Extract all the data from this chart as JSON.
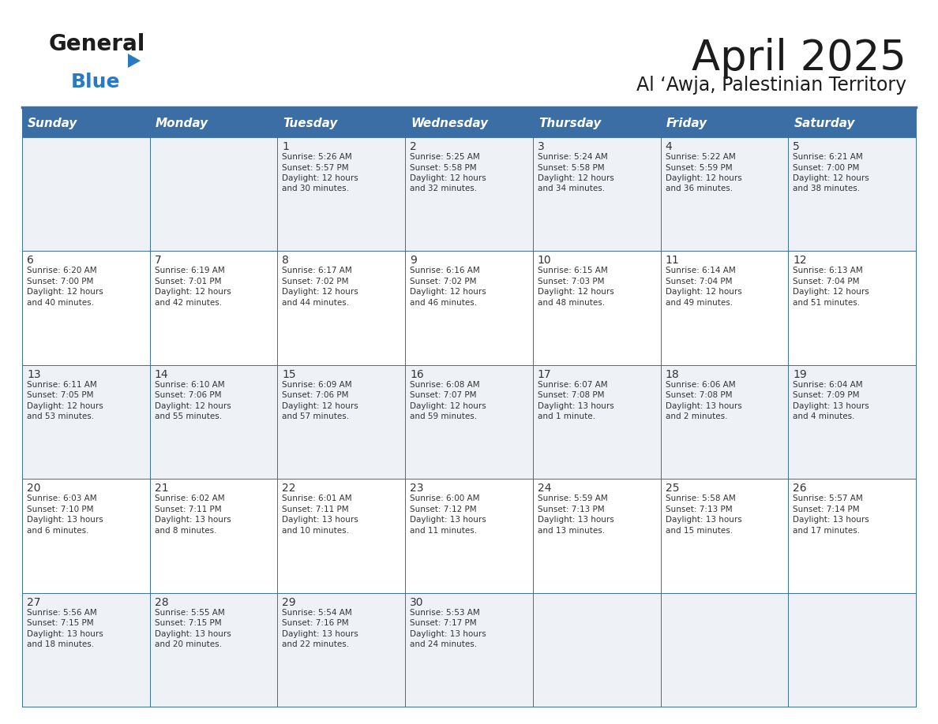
{
  "title": "April 2025",
  "subtitle": "Al ‘Awja, Palestinian Territory",
  "days_of_week": [
    "Sunday",
    "Monday",
    "Tuesday",
    "Wednesday",
    "Thursday",
    "Friday",
    "Saturday"
  ],
  "header_bg": "#3a6ea5",
  "header_text": "#ffffff",
  "odd_row_bg": "#eef2f7",
  "even_row_bg": "#ffffff",
  "border_color": "#3a6ea5",
  "text_color": "#333333",
  "calendar_data": [
    [
      {
        "day": "",
        "sunrise": "",
        "sunset": "",
        "daylight": ""
      },
      {
        "day": "",
        "sunrise": "",
        "sunset": "",
        "daylight": ""
      },
      {
        "day": "1",
        "sunrise": "5:26 AM",
        "sunset": "5:57 PM",
        "daylight": "12 hours\nand 30 minutes."
      },
      {
        "day": "2",
        "sunrise": "5:25 AM",
        "sunset": "5:58 PM",
        "daylight": "12 hours\nand 32 minutes."
      },
      {
        "day": "3",
        "sunrise": "5:24 AM",
        "sunset": "5:58 PM",
        "daylight": "12 hours\nand 34 minutes."
      },
      {
        "day": "4",
        "sunrise": "5:22 AM",
        "sunset": "5:59 PM",
        "daylight": "12 hours\nand 36 minutes."
      },
      {
        "day": "5",
        "sunrise": "6:21 AM",
        "sunset": "7:00 PM",
        "daylight": "12 hours\nand 38 minutes."
      }
    ],
    [
      {
        "day": "6",
        "sunrise": "6:20 AM",
        "sunset": "7:00 PM",
        "daylight": "12 hours\nand 40 minutes."
      },
      {
        "day": "7",
        "sunrise": "6:19 AM",
        "sunset": "7:01 PM",
        "daylight": "12 hours\nand 42 minutes."
      },
      {
        "day": "8",
        "sunrise": "6:17 AM",
        "sunset": "7:02 PM",
        "daylight": "12 hours\nand 44 minutes."
      },
      {
        "day": "9",
        "sunrise": "6:16 AM",
        "sunset": "7:02 PM",
        "daylight": "12 hours\nand 46 minutes."
      },
      {
        "day": "10",
        "sunrise": "6:15 AM",
        "sunset": "7:03 PM",
        "daylight": "12 hours\nand 48 minutes."
      },
      {
        "day": "11",
        "sunrise": "6:14 AM",
        "sunset": "7:04 PM",
        "daylight": "12 hours\nand 49 minutes."
      },
      {
        "day": "12",
        "sunrise": "6:13 AM",
        "sunset": "7:04 PM",
        "daylight": "12 hours\nand 51 minutes."
      }
    ],
    [
      {
        "day": "13",
        "sunrise": "6:11 AM",
        "sunset": "7:05 PM",
        "daylight": "12 hours\nand 53 minutes."
      },
      {
        "day": "14",
        "sunrise": "6:10 AM",
        "sunset": "7:06 PM",
        "daylight": "12 hours\nand 55 minutes."
      },
      {
        "day": "15",
        "sunrise": "6:09 AM",
        "sunset": "7:06 PM",
        "daylight": "12 hours\nand 57 minutes."
      },
      {
        "day": "16",
        "sunrise": "6:08 AM",
        "sunset": "7:07 PM",
        "daylight": "12 hours\nand 59 minutes."
      },
      {
        "day": "17",
        "sunrise": "6:07 AM",
        "sunset": "7:08 PM",
        "daylight": "13 hours\nand 1 minute."
      },
      {
        "day": "18",
        "sunrise": "6:06 AM",
        "sunset": "7:08 PM",
        "daylight": "13 hours\nand 2 minutes."
      },
      {
        "day": "19",
        "sunrise": "6:04 AM",
        "sunset": "7:09 PM",
        "daylight": "13 hours\nand 4 minutes."
      }
    ],
    [
      {
        "day": "20",
        "sunrise": "6:03 AM",
        "sunset": "7:10 PM",
        "daylight": "13 hours\nand 6 minutes."
      },
      {
        "day": "21",
        "sunrise": "6:02 AM",
        "sunset": "7:11 PM",
        "daylight": "13 hours\nand 8 minutes."
      },
      {
        "day": "22",
        "sunrise": "6:01 AM",
        "sunset": "7:11 PM",
        "daylight": "13 hours\nand 10 minutes."
      },
      {
        "day": "23",
        "sunrise": "6:00 AM",
        "sunset": "7:12 PM",
        "daylight": "13 hours\nand 11 minutes."
      },
      {
        "day": "24",
        "sunrise": "5:59 AM",
        "sunset": "7:13 PM",
        "daylight": "13 hours\nand 13 minutes."
      },
      {
        "day": "25",
        "sunrise": "5:58 AM",
        "sunset": "7:13 PM",
        "daylight": "13 hours\nand 15 minutes."
      },
      {
        "day": "26",
        "sunrise": "5:57 AM",
        "sunset": "7:14 PM",
        "daylight": "13 hours\nand 17 minutes."
      }
    ],
    [
      {
        "day": "27",
        "sunrise": "5:56 AM",
        "sunset": "7:15 PM",
        "daylight": "13 hours\nand 18 minutes."
      },
      {
        "day": "28",
        "sunrise": "5:55 AM",
        "sunset": "7:15 PM",
        "daylight": "13 hours\nand 20 minutes."
      },
      {
        "day": "29",
        "sunrise": "5:54 AM",
        "sunset": "7:16 PM",
        "daylight": "13 hours\nand 22 minutes."
      },
      {
        "day": "30",
        "sunrise": "5:53 AM",
        "sunset": "7:17 PM",
        "daylight": "13 hours\nand 24 minutes."
      },
      {
        "day": "",
        "sunrise": "",
        "sunset": "",
        "daylight": ""
      },
      {
        "day": "",
        "sunrise": "",
        "sunset": "",
        "daylight": ""
      },
      {
        "day": "",
        "sunrise": "",
        "sunset": "",
        "daylight": ""
      }
    ]
  ],
  "title_fontsize": 38,
  "subtitle_fontsize": 17,
  "day_number_fontsize": 10,
  "cell_text_fontsize": 7.5,
  "header_fontsize": 11,
  "logo_general_fontsize": 20,
  "logo_blue_fontsize": 18
}
